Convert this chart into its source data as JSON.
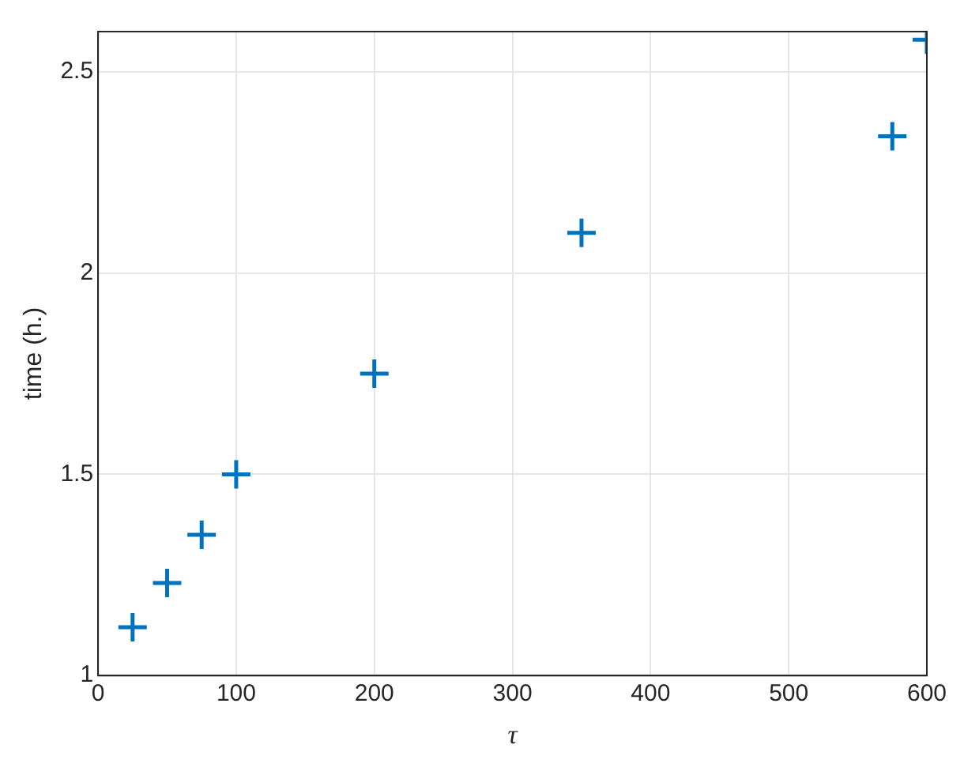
{
  "chart_data": {
    "type": "scatter",
    "xlabel": "τ",
    "ylabel": "time (h.)",
    "x": [
      25,
      50,
      75,
      100,
      200,
      350,
      575,
      600
    ],
    "values": [
      1.12,
      1.23,
      1.35,
      1.5,
      1.75,
      2.1,
      2.34,
      2.58
    ],
    "color": "#0072bd",
    "marker": "cross",
    "xlim": [
      0,
      600
    ],
    "xticks": [
      0,
      100,
      200,
      300,
      400,
      500,
      600
    ],
    "ylim": [
      1,
      2.6
    ],
    "yticks": [
      1,
      1.5,
      2,
      2.5
    ],
    "grid": true,
    "legend": false
  }
}
